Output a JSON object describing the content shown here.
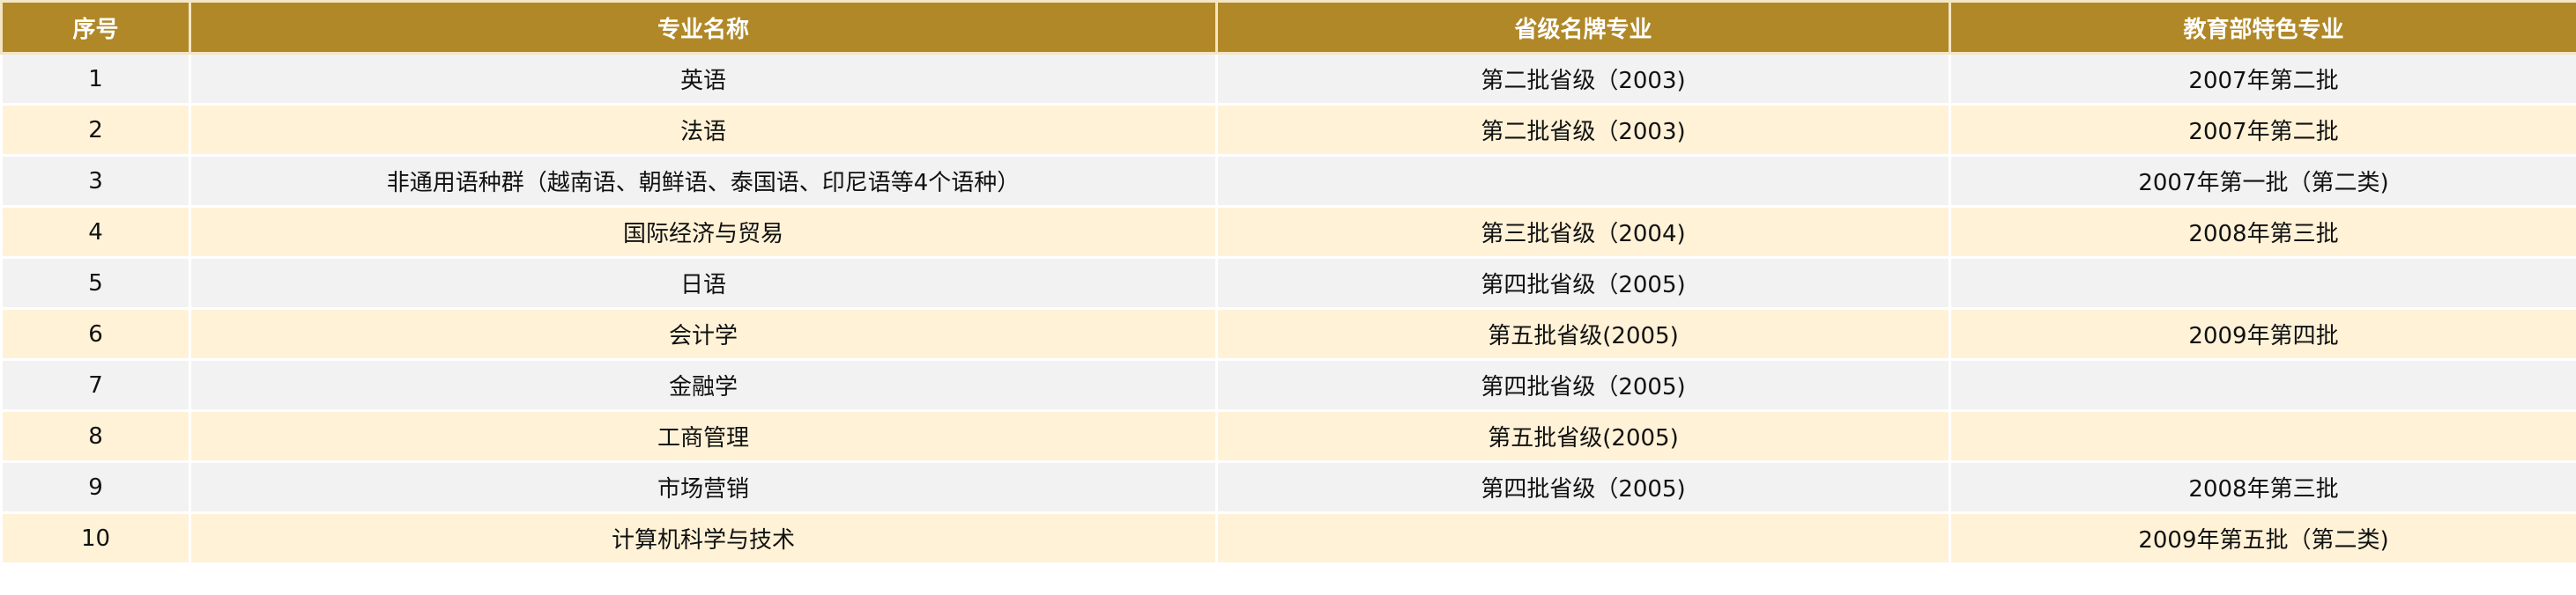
{
  "table": {
    "headers": [
      "序号",
      "专业名称",
      "省级名牌专业",
      "教育部特色专业"
    ],
    "rows": [
      [
        "1",
        "英语",
        "第二批省级（2003)",
        "2007年第二批"
      ],
      [
        "2",
        "法语",
        "第二批省级（2003)",
        "2007年第二批"
      ],
      [
        "3",
        "非通用语种群（越南语、朝鲜语、泰国语、印尼语等4个语种）",
        "",
        "2007年第一批（第二类)"
      ],
      [
        "4",
        "国际经济与贸易",
        "第三批省级（2004)",
        "2008年第三批"
      ],
      [
        "5",
        "日语",
        "第四批省级（2005)",
        ""
      ],
      [
        "6",
        "会计学",
        "第五批省级(2005)",
        "2009年第四批"
      ],
      [
        "7",
        "金融学",
        "第四批省级（2005)",
        ""
      ],
      [
        "8",
        "工商管理",
        "第五批省级(2005)",
        ""
      ],
      [
        "9",
        "市场营销",
        "第四批省级（2005)",
        "2008年第三批"
      ],
      [
        "10",
        "计算机科学与技术",
        "",
        "2009年第五批（第二类)"
      ]
    ]
  },
  "colors": {
    "header_bg": "#B08828",
    "row_odd": "#F2F2F2",
    "row_even": "#FFF2D7"
  }
}
